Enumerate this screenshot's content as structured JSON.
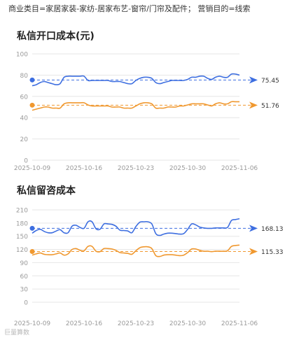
{
  "header": {
    "category_text": "商业类目=家居家装-家纺-居家布艺-窗帘/门帘及配件； 营销目的=线索"
  },
  "watermark": "巨量算数",
  "colors": {
    "blue": "#3d6ee0",
    "orange": "#f0982f",
    "grid": "#e6e6e6",
    "axis_text": "#9a9a9a"
  },
  "chart_data": [
    {
      "type": "line",
      "title": "私信开口成本(元)",
      "xlabel": "",
      "ylabel": "",
      "ylim": [
        0,
        100
      ],
      "yticks": [
        0,
        20,
        40,
        60,
        80,
        100
      ],
      "x_start": "2025-10-09",
      "x_tick_labels": [
        "2025-10-09",
        "2025-10-16",
        "2025-10-23",
        "2025-10-30",
        "2025-11-06"
      ],
      "grid": true,
      "series": [
        {
          "color": "#3d6ee0",
          "reference_value": 75.45,
          "reference_label": "75.45",
          "values": [
            70,
            71,
            73,
            74,
            73,
            72,
            71,
            72,
            78,
            79,
            79,
            79,
            79,
            79,
            75,
            75,
            75,
            75,
            75,
            75,
            74,
            74,
            74,
            73,
            72,
            72,
            75,
            77,
            78,
            78,
            77,
            73,
            72,
            73,
            74,
            75,
            75,
            75,
            75,
            76,
            78,
            78,
            79,
            79,
            77,
            76,
            78,
            79,
            78,
            78,
            81,
            81,
            80
          ]
        },
        {
          "color": "#f0982f",
          "reference_value": 51.76,
          "reference_label": "51.76",
          "values": [
            47,
            48,
            49,
            50,
            50,
            49,
            49,
            49,
            53,
            54,
            54,
            54,
            54,
            54,
            52,
            51,
            51,
            51,
            51,
            51,
            50,
            50,
            50,
            49,
            49,
            49,
            51,
            53,
            54,
            54,
            53,
            49,
            49,
            49,
            50,
            50,
            50,
            51,
            51,
            52,
            53,
            53,
            53,
            53,
            52,
            51,
            53,
            54,
            53,
            53,
            55,
            55,
            55
          ]
        }
      ]
    },
    {
      "type": "line",
      "title": "私信留咨成本",
      "xlabel": "",
      "ylabel": "",
      "ylim": [
        0,
        210
      ],
      "yticks": [
        0,
        30,
        60,
        90,
        120,
        150,
        180,
        210
      ],
      "x_start": "2025-10-09",
      "x_tick_labels": [
        "2025-10-09",
        "2025-10-16",
        "2025-10-23",
        "2025-10-30",
        "2025-11-06"
      ],
      "grid": true,
      "series": [
        {
          "color": "#3d6ee0",
          "reference_value": 168.13,
          "reference_label": "168.13",
          "values": [
            157,
            163,
            166,
            161,
            158,
            158,
            162,
            165,
            158,
            158,
            173,
            175,
            170,
            168,
            183,
            183,
            167,
            166,
            178,
            178,
            177,
            173,
            164,
            163,
            162,
            158,
            172,
            182,
            183,
            183,
            178,
            156,
            152,
            155,
            157,
            157,
            156,
            155,
            156,
            166,
            178,
            176,
            171,
            169,
            168,
            168,
            169,
            169,
            169,
            170,
            186,
            188,
            190
          ]
        },
        {
          "color": "#f0982f",
          "reference_value": 115.33,
          "reference_label": "115.33",
          "values": [
            107,
            110,
            112,
            109,
            108,
            108,
            110,
            112,
            107,
            110,
            120,
            122,
            118,
            117,
            127,
            127,
            116,
            115,
            122,
            122,
            121,
            118,
            113,
            112,
            111,
            109,
            117,
            124,
            126,
            126,
            122,
            106,
            104,
            107,
            108,
            108,
            107,
            106,
            107,
            113,
            121,
            121,
            118,
            116,
            116,
            115,
            116,
            116,
            116,
            117,
            127,
            129,
            130
          ]
        }
      ]
    }
  ]
}
